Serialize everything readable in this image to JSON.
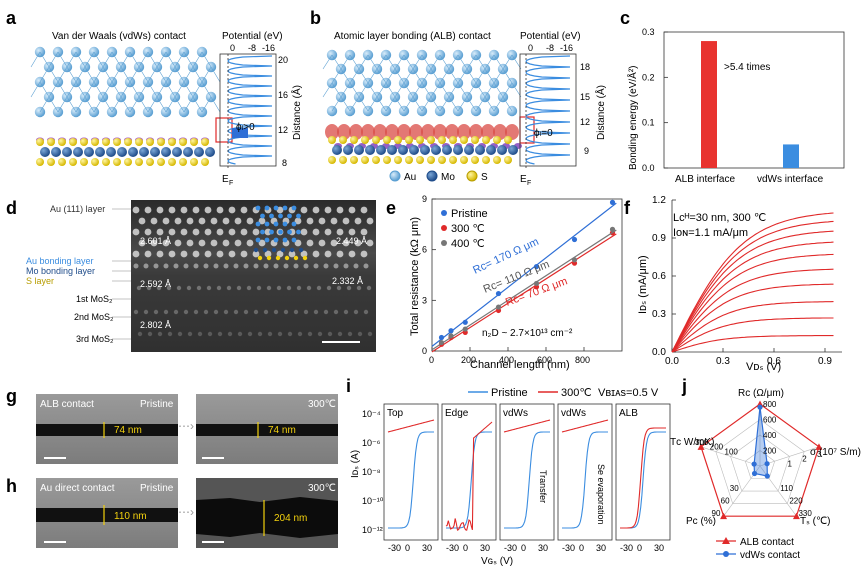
{
  "panels": {
    "a": {
      "letter": "a",
      "title": "Van der Waals (vdWs) contact",
      "pot_label": "Potential (eV)",
      "pot_ticks": [
        "0",
        "-8",
        "-16"
      ],
      "dist_label": "Distance (Å)",
      "dist_ticks": [
        "20",
        "16",
        "12",
        "8"
      ],
      "phi": "ϕₗ>0",
      "ef": "E",
      "ef_sub": "F"
    },
    "b": {
      "letter": "b",
      "title": "Atomic layer bonding (ALB) contact",
      "pot_label": "Potential (eV)",
      "pot_ticks": [
        "0",
        "-8",
        "-16"
      ],
      "dist_label": "Distance (Å)",
      "dist_ticks": [
        "18",
        "15",
        "12",
        "9"
      ],
      "phi": "ϕₗ=0",
      "ef": "E",
      "ef_sub": "F",
      "legend": [
        "Au",
        "Mo",
        "S"
      ]
    },
    "c": {
      "letter": "c",
      "ylabel": "Bonding energy (eV/Å²)",
      "annotation": ">5.4 times"
    },
    "d": {
      "letter": "d",
      "labels": [
        "Au (111) layer",
        "Au bonding layer",
        "Mo bonding layer",
        "S layer",
        "1st MoS₂",
        "2nd MoS₂",
        "3rd MoS₂"
      ],
      "dims": [
        "2.601 Å",
        "2.592 Å",
        "2.802 Å",
        "2.449 Å",
        "2.332 Å"
      ]
    },
    "e": {
      "letter": "e",
      "legend": [
        "Pristine",
        "300 ℃",
        "400 ℃"
      ],
      "rc": [
        "Rᴄ= 170 Ω μm",
        "Rᴄ= 110 Ω μm",
        "Rᴄ= 70 Ω μm"
      ],
      "n2d": "n₂D ~ 2.7×10¹³ cm⁻²"
    },
    "f": {
      "letter": "f",
      "ann1": "Lᴄᴴ=30 nm, 300 ℃",
      "ann2": "Iᴏɴ=1.1 mA/μm"
    },
    "g": {
      "letter": "g",
      "left_label": "ALB contact",
      "left_tag": "Pristine",
      "left_dim": "74 nm",
      "right_tag": "300℃",
      "right_dim": "74 nm"
    },
    "h": {
      "letter": "h",
      "left_label": "Au direct contact",
      "left_tag": "Pristine",
      "left_dim": "110 nm",
      "right_tag": "300℃",
      "right_dim": "204 nm"
    },
    "i": {
      "letter": "i",
      "legend": [
        "Pristine",
        "300℃"
      ],
      "vbias": "Vʙɪᴀs=0.5 V",
      "subpanels": [
        "Top",
        "Edge",
        "vdWs",
        "vdWs",
        "ALB"
      ],
      "side_notes": [
        "Transfer",
        "Se evaporation"
      ],
      "ylabel": "Iᴅₛ (A)",
      "xlabel": "Vɢₛ (V)"
    },
    "j": {
      "letter": "j",
      "axes": [
        "Rᴄ (Ω/μm)",
        "σ (10⁷ S/m)",
        "Tₛ (℃)",
        "Pᴄ (%)",
        "Tᴄ W/mK)"
      ],
      "legend": [
        "ALB contact",
        "vdWs contact"
      ]
    }
  },
  "chart_data": [
    {
      "type": "bar",
      "panel": "c",
      "categories": [
        "ALB interface",
        "vdWs interface"
      ],
      "values": [
        0.28,
        0.052
      ],
      "ylabel": "Bonding energy (eV/Å²)",
      "ylim": [
        0,
        0.3
      ],
      "yticks": [
        0.0,
        0.1,
        0.2,
        0.3
      ],
      "colors": [
        "#e8332f",
        "#3b8de0"
      ]
    },
    {
      "type": "scatter",
      "panel": "e",
      "xlabel": "Channel length (nm)",
      "ylabel": "Total resistance (kΩ μm)",
      "xlim": [
        0,
        1000
      ],
      "ylim": [
        0,
        9
      ],
      "xticks": [
        0,
        200,
        400,
        600,
        800
      ],
      "yticks": [
        0,
        3,
        6,
        9
      ],
      "series": [
        {
          "name": "Pristine",
          "color": "#2f6fd6",
          "x": [
            50,
            100,
            175,
            350,
            550,
            750,
            950
          ],
          "y": [
            0.8,
            1.2,
            1.7,
            3.4,
            5.0,
            6.6,
            8.8
          ]
        },
        {
          "name": "300 ℃",
          "color": "#e02a2a",
          "x": [
            50,
            100,
            175,
            350,
            550,
            750,
            950
          ],
          "y": [
            0.4,
            0.8,
            1.1,
            2.4,
            3.8,
            5.2,
            7.0
          ]
        },
        {
          "name": "400 ℃",
          "color": "#777777",
          "x": [
            50,
            100,
            175,
            350,
            550,
            750,
            950
          ],
          "y": [
            0.5,
            0.9,
            1.3,
            2.6,
            4.0,
            5.4,
            7.2
          ]
        }
      ]
    },
    {
      "type": "line",
      "panel": "f",
      "xlabel": "Vᴅₛ (V)",
      "ylabel": "Iᴅₛ (mA/μm)",
      "xlim": [
        0,
        1.0
      ],
      "ylim": [
        0,
        1.2
      ],
      "xticks": [
        0.0,
        0.3,
        0.6,
        0.9
      ],
      "yticks": [
        0.0,
        0.3,
        0.6,
        0.9,
        1.2
      ],
      "saturation": [
        1.12,
        1.05,
        0.97,
        0.88,
        0.78,
        0.66,
        0.54,
        0.4,
        0.27,
        0.13
      ]
    },
    {
      "type": "line",
      "panel": "i",
      "log_y": true,
      "yticks": [
        "10⁻⁴",
        "10⁻⁶",
        "10⁻⁸",
        "10⁻¹⁰",
        "10⁻¹²"
      ],
      "xticks": [
        "-30",
        "0",
        "30"
      ]
    },
    {
      "type": "radar",
      "panel": "j",
      "axes": [
        "Rᴄ",
        "σ",
        "Tₛ",
        "Pᴄ",
        "Tᴄ"
      ],
      "ticks": {
        "R": [
          "200",
          "400",
          "600",
          "800"
        ],
        "sigma": [
          "1",
          "2",
          "3"
        ],
        "Ts": [
          "110",
          "220",
          "330"
        ],
        "Pc": [
          "30",
          "60",
          "90"
        ],
        "Tc": [
          "100",
          "200",
          "300"
        ]
      },
      "series": [
        {
          "name": "ALB contact",
          "color": "#e02a2a",
          "values": [
            1.0,
            1.0,
            1.0,
            1.0,
            1.0
          ]
        },
        {
          "name": "vdWs contact",
          "color": "#2f6fd6",
          "values": [
            0.95,
            0.12,
            0.2,
            0.15,
            0.1
          ]
        }
      ]
    }
  ]
}
